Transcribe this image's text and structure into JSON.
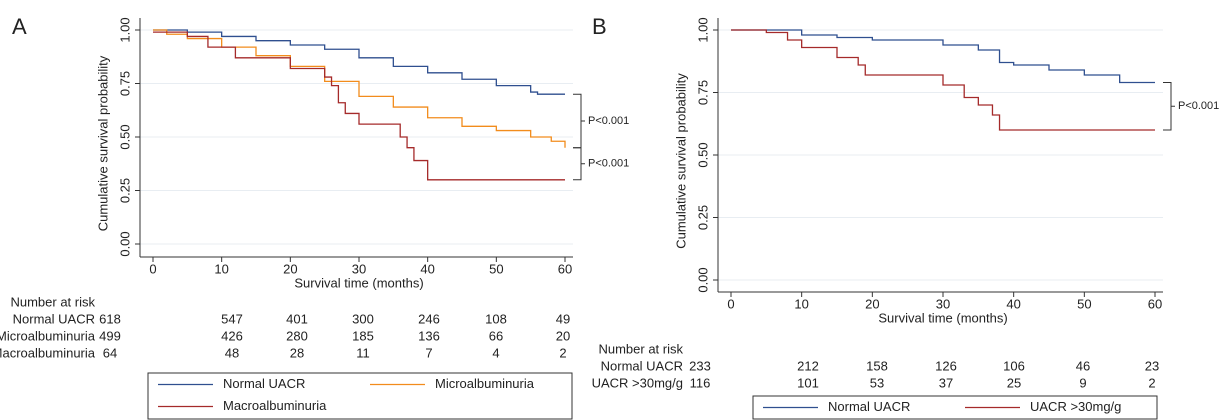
{
  "chart_data": [
    {
      "type": "line",
      "step": true,
      "panel": "A",
      "xlabel": "Survival time (months)",
      "ylabel": "Cumulative survival probability",
      "xlim": [
        0,
        60
      ],
      "xticks": [
        0,
        10,
        20,
        30,
        40,
        50,
        60
      ],
      "ylim": [
        0,
        1
      ],
      "yticks": [
        {
          "value": 0,
          "label": "0.00"
        },
        {
          "value": 0.25,
          "label": "0.25"
        },
        {
          "value": 0.5,
          "label": "0.50"
        },
        {
          "value": 0.75,
          "label": "0.75"
        },
        {
          "value": 1,
          "label": "1.00"
        }
      ],
      "grid": true,
      "series": [
        {
          "name": "Normal UACR",
          "color": "#2f4f8f",
          "x": [
            0,
            5,
            10,
            15,
            20,
            25,
            30,
            35,
            40,
            45,
            50,
            55,
            56,
            60
          ],
          "values": [
            1,
            0.99,
            0.97,
            0.95,
            0.93,
            0.91,
            0.87,
            0.83,
            0.8,
            0.77,
            0.74,
            0.71,
            0.7,
            0.7
          ]
        },
        {
          "name": "Microalbuminuria",
          "color": "#f28c1c",
          "x": [
            0,
            2,
            5,
            10,
            15,
            20,
            25,
            30,
            35,
            40,
            45,
            50,
            55,
            58,
            60
          ],
          "values": [
            1,
            0.98,
            0.96,
            0.92,
            0.88,
            0.83,
            0.76,
            0.69,
            0.64,
            0.59,
            0.55,
            0.53,
            0.5,
            0.48,
            0.45
          ]
        },
        {
          "name": "Macroalbuminuria",
          "color": "#a52a2a",
          "x": [
            0,
            5,
            8,
            12,
            20,
            25,
            26,
            27,
            28,
            30,
            36,
            37,
            38,
            40,
            60
          ],
          "values": [
            0.99,
            0.97,
            0.92,
            0.87,
            0.82,
            0.78,
            0.74,
            0.66,
            0.61,
            0.56,
            0.5,
            0.45,
            0.39,
            0.3,
            0.3
          ]
        }
      ],
      "annotations": [
        "P<0.001",
        "P<0.001"
      ],
      "risk_table": {
        "title": "Number at risk",
        "rows": [
          {
            "label": "Normal UACR",
            "values": [
              618,
              547,
              401,
              300,
              246,
              108,
              49
            ]
          },
          {
            "label": "Microalbuminuria",
            "values": [
              499,
              426,
              280,
              185,
              136,
              66,
              20
            ]
          },
          {
            "label": "Macroalbuminuria",
            "values": [
              64,
              48,
              28,
              11,
              7,
              4,
              2
            ]
          }
        ]
      }
    },
    {
      "type": "line",
      "step": true,
      "panel": "B",
      "xlabel": "Survival time (months)",
      "ylabel": "Cumulative survival probability",
      "xlim": [
        0,
        60
      ],
      "xticks": [
        0,
        10,
        20,
        30,
        40,
        50,
        60
      ],
      "ylim": [
        0,
        1
      ],
      "yticks": [
        {
          "value": 0,
          "label": "0.00"
        },
        {
          "value": 0.25,
          "label": "0.25"
        },
        {
          "value": 0.5,
          "label": "0.50"
        },
        {
          "value": 0.75,
          "label": "0.75"
        },
        {
          "value": 1,
          "label": "1.00"
        }
      ],
      "grid": true,
      "series": [
        {
          "name": "Normal UACR",
          "color": "#2f4f8f",
          "x": [
            0,
            10,
            15,
            20,
            30,
            35,
            38,
            40,
            45,
            50,
            55,
            60
          ],
          "values": [
            1,
            0.98,
            0.97,
            0.96,
            0.94,
            0.92,
            0.87,
            0.86,
            0.84,
            0.82,
            0.79,
            0.79
          ]
        },
        {
          "name": "UACR >30mg/g",
          "color": "#a52a2a",
          "x": [
            0,
            5,
            8,
            10,
            15,
            18,
            19,
            25,
            30,
            33,
            35,
            37,
            38,
            60
          ],
          "values": [
            1,
            0.99,
            0.96,
            0.93,
            0.89,
            0.86,
            0.82,
            0.82,
            0.78,
            0.73,
            0.7,
            0.66,
            0.6,
            0.6
          ]
        }
      ],
      "annotations": [
        "P<0.001"
      ],
      "risk_table": {
        "title": "Number at risk",
        "rows": [
          {
            "label": "Normal UACR",
            "values": [
              233,
              212,
              158,
              126,
              106,
              46,
              23
            ]
          },
          {
            "label": "UACR >30mg/g",
            "values": [
              116,
              101,
              53,
              37,
              25,
              9,
              2
            ]
          }
        ]
      }
    }
  ]
}
